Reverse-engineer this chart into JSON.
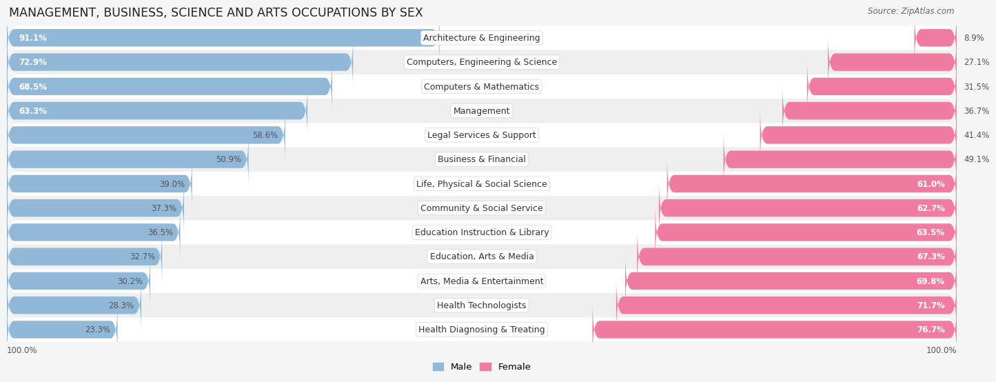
{
  "title": "MANAGEMENT, BUSINESS, SCIENCE AND ARTS OCCUPATIONS BY SEX",
  "source": "Source: ZipAtlas.com",
  "categories": [
    "Architecture & Engineering",
    "Computers, Engineering & Science",
    "Computers & Mathematics",
    "Management",
    "Legal Services & Support",
    "Business & Financial",
    "Life, Physical & Social Science",
    "Community & Social Service",
    "Education Instruction & Library",
    "Education, Arts & Media",
    "Arts, Media & Entertainment",
    "Health Technologists",
    "Health Diagnosing & Treating"
  ],
  "male_pct": [
    91.1,
    72.9,
    68.5,
    63.3,
    58.6,
    50.9,
    39.0,
    37.3,
    36.5,
    32.7,
    30.2,
    28.3,
    23.3
  ],
  "female_pct": [
    8.9,
    27.1,
    31.5,
    36.7,
    41.4,
    49.1,
    61.0,
    62.7,
    63.5,
    67.3,
    69.8,
    71.7,
    76.7
  ],
  "male_color": "#92b8d8",
  "female_color": "#f07ca0",
  "bg_color": "#f5f5f5",
  "row_bg_colors": [
    "#ffffff",
    "#efefef"
  ],
  "title_fontsize": 12.5,
  "label_fontsize": 9,
  "value_fontsize": 8.5,
  "legend_fontsize": 9.5,
  "source_fontsize": 8.5,
  "male_white_threshold": 63,
  "female_white_threshold": 55
}
